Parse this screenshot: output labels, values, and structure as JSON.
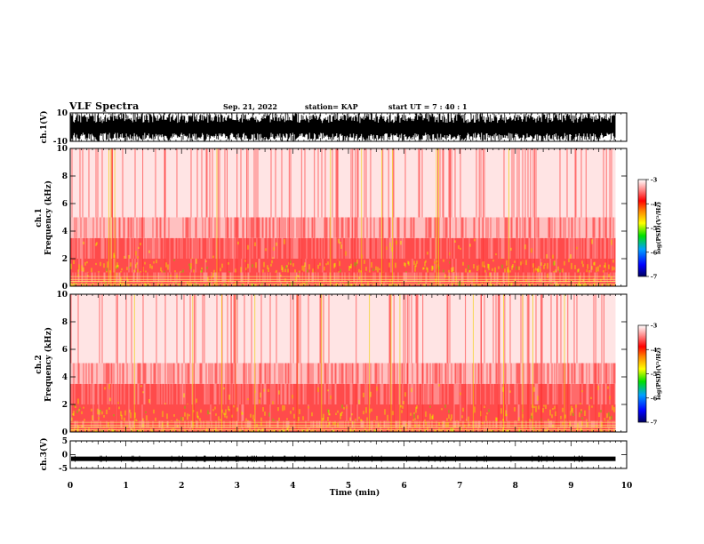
{
  "header": {
    "title": "VLF Spectra",
    "date": "Sep. 21, 2022",
    "station": "station= KAP",
    "start_ut": "start  UT  =   7 : 40 : 1"
  },
  "colors": {
    "cmap": [
      "#000080",
      "#0000ff",
      "#00a0ff",
      "#00e000",
      "#ffff00",
      "#ff8000",
      "#ff0000",
      "#ffb0b0",
      "#ffffff"
    ]
  },
  "chart_data": [
    {
      "type": "line",
      "panel": "ch1-waveform",
      "ylabel": "ch.1(V)",
      "ylim": [
        -10,
        10
      ],
      "yticks": [
        "10",
        "-10"
      ],
      "xlim": [
        0,
        10
      ],
      "description_values": {
        "typical_low": -10,
        "typical_high": 10
      }
    },
    {
      "type": "heatmap",
      "panel": "ch1-spectrogram",
      "ylabel": "ch.1\nFrequency (kHz)",
      "ylabel_line1": "ch.1",
      "ylabel_line2": "Frequency (kHz)",
      "ylim": [
        0,
        10
      ],
      "yticks": [
        "0",
        "2",
        "4",
        "6",
        "8",
        "10"
      ],
      "xlim": [
        0,
        10
      ],
      "data_extent_min": 9.8,
      "bands": [
        {
          "fmin": 0.0,
          "fmax": 0.3,
          "level": "high"
        },
        {
          "fmin": 0.3,
          "fmax": 1.0,
          "level": "medium"
        },
        {
          "fmin": 1.0,
          "fmax": 2.0,
          "level": "high"
        },
        {
          "fmin": 2.0,
          "fmax": 3.5,
          "level": "medium"
        },
        {
          "fmin": 3.5,
          "fmax": 5.0,
          "level": "low"
        },
        {
          "fmin": 5.0,
          "fmax": 10.0,
          "level": "sparse"
        }
      ]
    },
    {
      "type": "heatmap",
      "panel": "ch2-spectrogram",
      "ylabel_line1": "ch.2",
      "ylabel_line2": "Frequency (kHz)",
      "ylim": [
        0,
        10
      ],
      "yticks": [
        "0",
        "2",
        "4",
        "6",
        "8",
        "10"
      ],
      "xlim": [
        0,
        10
      ],
      "data_extent_min": 9.8,
      "bands": [
        {
          "fmin": 0.0,
          "fmax": 0.3,
          "level": "high"
        },
        {
          "fmin": 0.3,
          "fmax": 0.8,
          "level": "medium"
        },
        {
          "fmin": 0.8,
          "fmax": 2.0,
          "level": "high"
        },
        {
          "fmin": 2.0,
          "fmax": 3.5,
          "level": "medium"
        },
        {
          "fmin": 3.5,
          "fmax": 5.0,
          "level": "low"
        },
        {
          "fmin": 5.0,
          "fmax": 10.0,
          "level": "sparse"
        }
      ]
    },
    {
      "type": "line",
      "panel": "ch3-waveform",
      "ylabel": "ch.3(V)",
      "ylim": [
        -5,
        5
      ],
      "yticks": [
        "5",
        "0",
        "-5"
      ],
      "xlim": [
        0,
        10
      ],
      "constant_value": -1.5
    }
  ],
  "xaxis": {
    "label": "Time  (min)",
    "ticks": [
      "0",
      "1",
      "2",
      "3",
      "4",
      "5",
      "6",
      "7",
      "8",
      "9",
      "10"
    ]
  },
  "colorbar": {
    "label": "log(PSD)(V²/Hz)",
    "ticks": [
      "-3",
      "-4",
      "-5",
      "-6",
      "-7"
    ],
    "range": [
      -7,
      -3
    ]
  }
}
